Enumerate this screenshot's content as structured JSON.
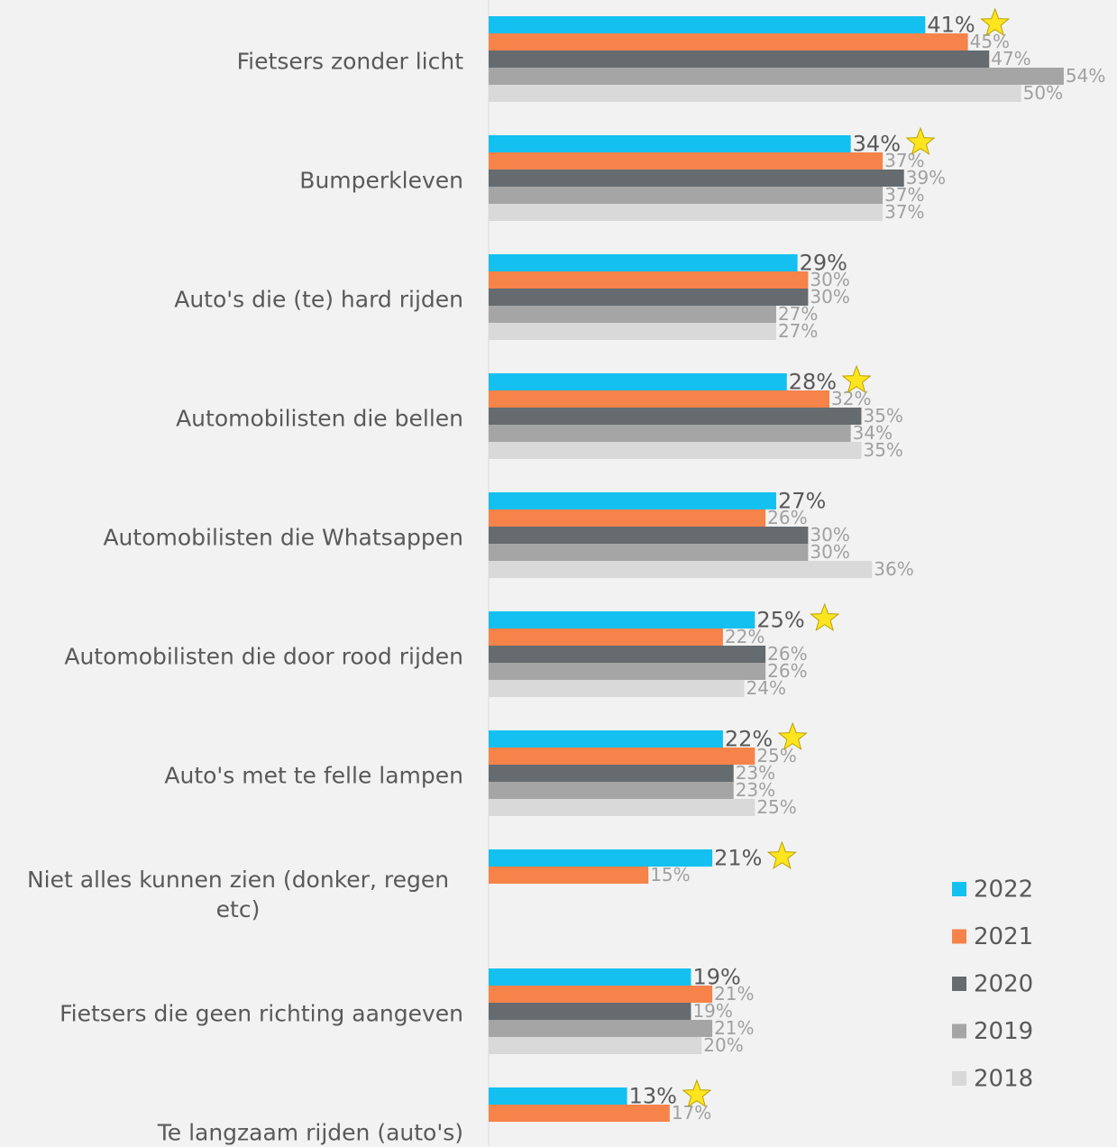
{
  "chart_data": {
    "type": "bar",
    "orientation": "horizontal",
    "categories": [
      "Fietsers zonder licht",
      "Bumperkleven",
      "Auto's die (te) hard rijden",
      "Automobilisten die bellen",
      "Automobilisten die Whatsappen",
      "Automobilisten die door rood rijden",
      "Auto's met te felle lampen",
      "Niet alles kunnen zien (donker, regen etc)",
      "Fietsers die geen richting aangeven",
      "Te langzaam rijden (auto's)"
    ],
    "series": [
      {
        "name": "2022",
        "color": "#13c0ef",
        "values": [
          41,
          34,
          29,
          28,
          27,
          25,
          22,
          21,
          19,
          13
        ],
        "value_labels": [
          "41%",
          "34%",
          "29%",
          "28%",
          "27%",
          "25%",
          "22%",
          "21%",
          "19%",
          "13%"
        ]
      },
      {
        "name": "2021",
        "color": "#f5834a",
        "values": [
          45,
          37,
          30,
          32,
          26,
          22,
          25,
          15,
          21,
          17
        ],
        "value_labels": [
          "45%",
          "37%",
          "30%",
          "32%",
          "26%",
          "22%",
          "25%",
          "15%",
          "21%",
          "17%"
        ]
      },
      {
        "name": "2020",
        "color": "#656b6e",
        "values": [
          47,
          39,
          30,
          35,
          30,
          26,
          23,
          null,
          19,
          null
        ],
        "value_labels": [
          "47%",
          "39%",
          "30%",
          "35%",
          "30%",
          "26%",
          "23%",
          null,
          "19%",
          null
        ]
      },
      {
        "name": "2019",
        "color": "#a5a5a5",
        "values": [
          54,
          37,
          27,
          34,
          30,
          26,
          23,
          null,
          21,
          null
        ],
        "value_labels": [
          "54%",
          "37%",
          "27%",
          "34%",
          "30%",
          "26%",
          "23%",
          null,
          "21%",
          null
        ]
      },
      {
        "name": "2018",
        "color": "#d9d9d9",
        "values": [
          50,
          37,
          27,
          35,
          36,
          24,
          25,
          null,
          20,
          null
        ],
        "value_labels": [
          "50%",
          "37%",
          "27%",
          "35%",
          "36%",
          "24%",
          "25%",
          null,
          "20%",
          null
        ]
      }
    ],
    "stars": [
      true,
      true,
      false,
      true,
      false,
      true,
      true,
      true,
      false,
      true
    ],
    "xlim": [
      0,
      59
    ],
    "legend": "right"
  }
}
